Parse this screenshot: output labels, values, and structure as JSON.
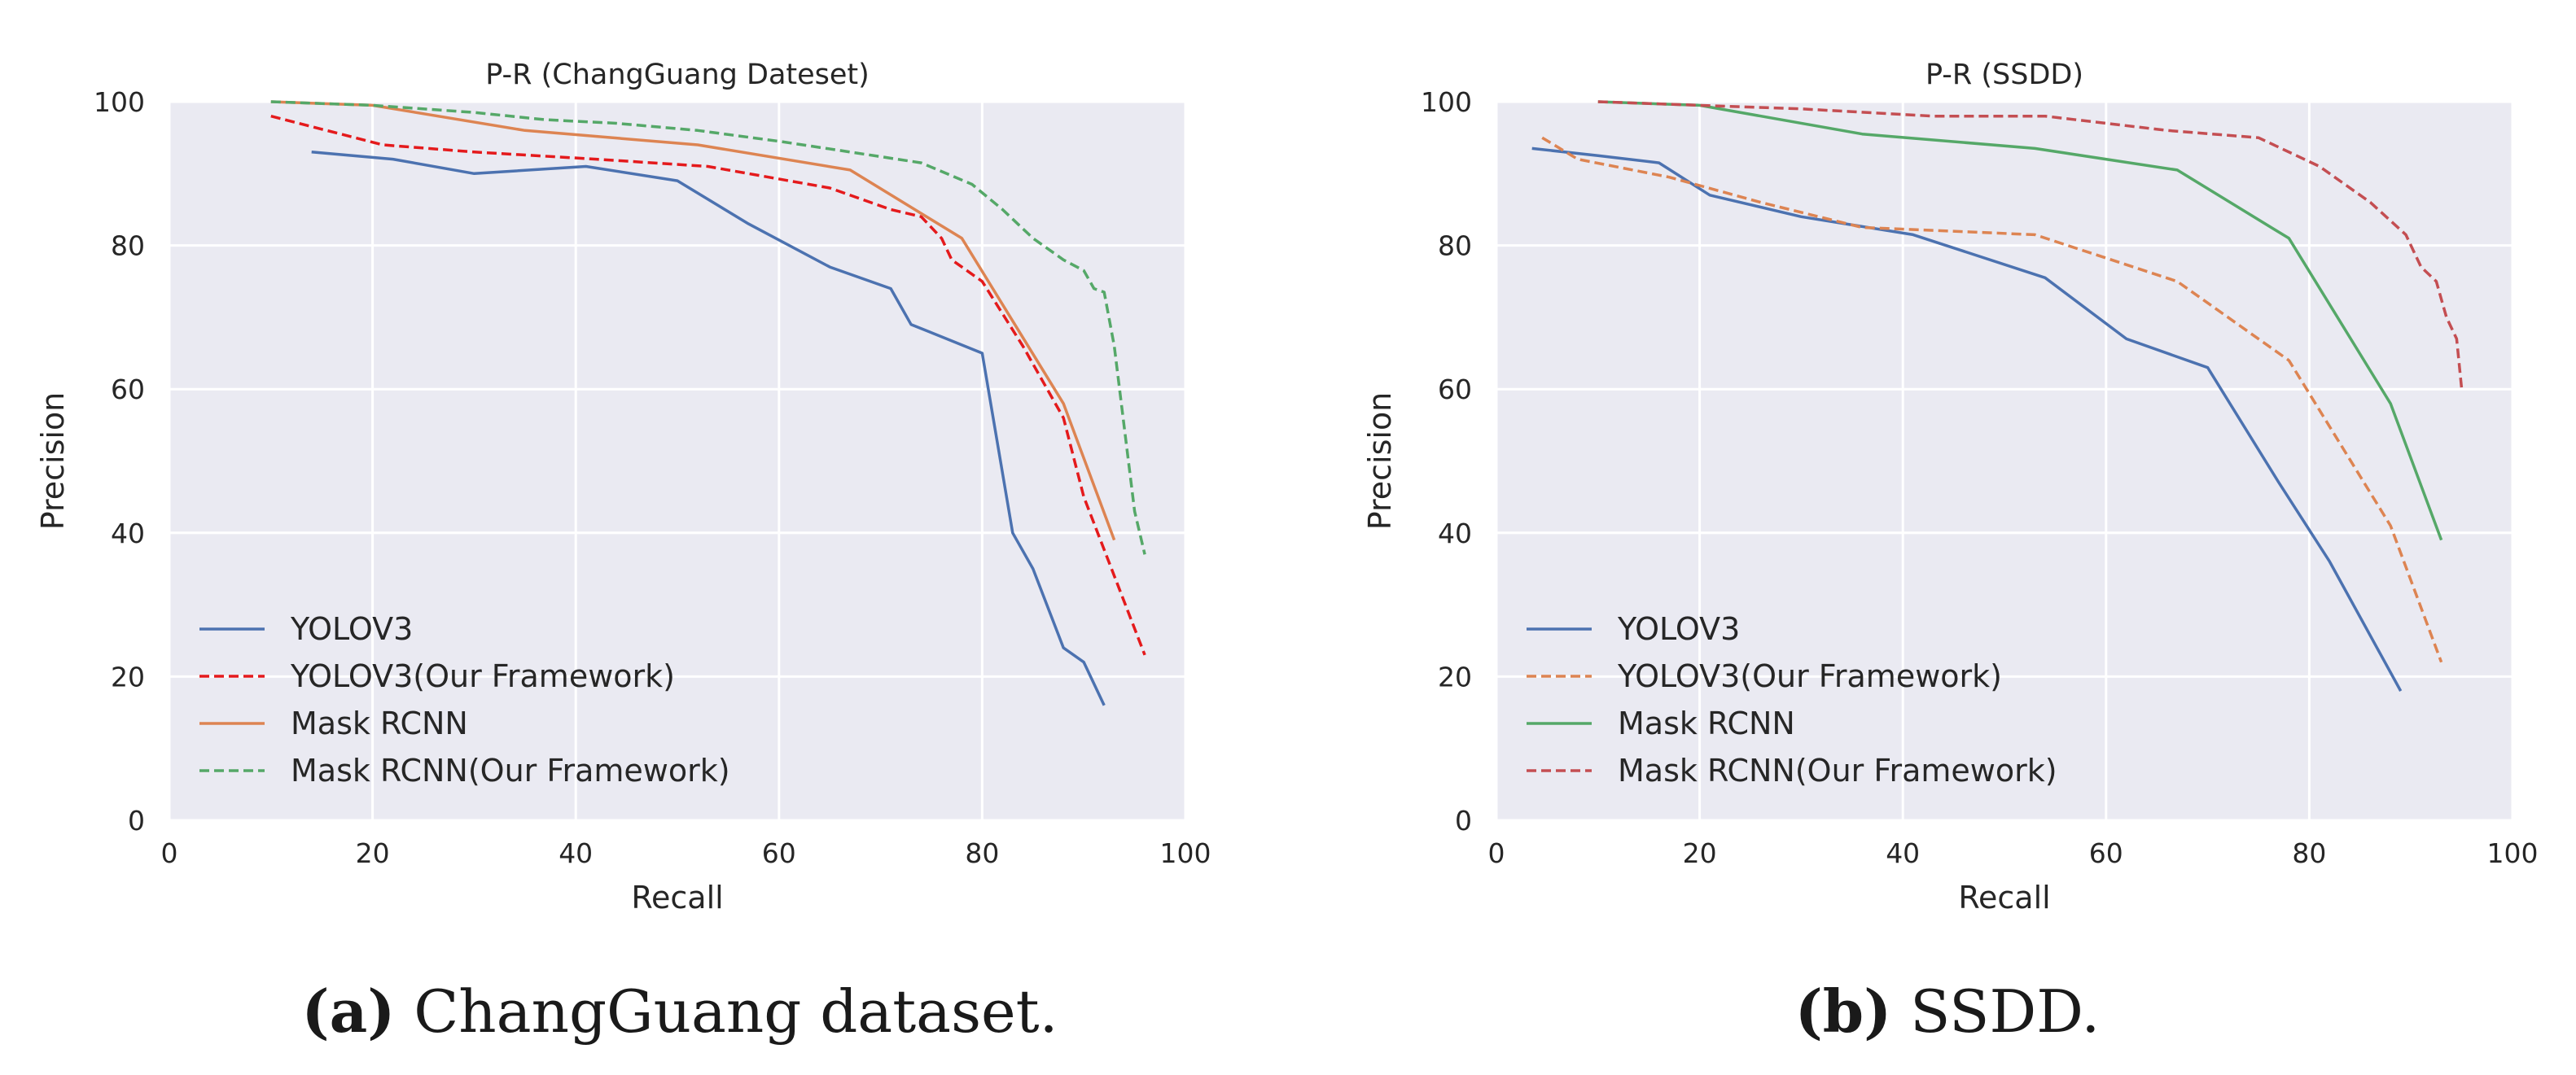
{
  "chart_data": [
    {
      "type": "line",
      "title": "P-R (ChangGuang Dateset)",
      "xlabel": "Recall",
      "ylabel": "Precision",
      "xlim": [
        0,
        100
      ],
      "ylim": [
        0,
        100
      ],
      "xticks": [
        0,
        20,
        40,
        60,
        80,
        100
      ],
      "yticks": [
        0,
        20,
        40,
        60,
        80,
        100
      ],
      "grid": true,
      "legend_position": "lower-left",
      "series": [
        {
          "name": "YOLOV3",
          "color": "#4c72b0",
          "dashed": false,
          "x": [
            14,
            22,
            30,
            41,
            50,
            57,
            65,
            71,
            73,
            80,
            83,
            85,
            88,
            90,
            92
          ],
          "y": [
            93,
            92,
            90,
            91,
            89,
            83,
            77,
            74,
            69,
            65,
            40,
            35,
            24,
            22,
            16
          ]
        },
        {
          "name": "YOLOV3(Our Framework)",
          "color": "#e41a1c",
          "dashed": true,
          "x": [
            10,
            21,
            30,
            42,
            53,
            65,
            71,
            74,
            76,
            77,
            80,
            84,
            88,
            90,
            96
          ],
          "y": [
            98,
            94,
            93,
            92,
            91,
            88,
            85,
            84,
            81,
            78,
            75,
            66,
            56,
            45,
            23
          ]
        },
        {
          "name": "Mask RCNN",
          "color": "#dd8452",
          "dashed": false,
          "x": [
            10,
            20,
            35,
            52,
            67,
            78,
            88,
            93
          ],
          "y": [
            100,
            99.5,
            96,
            94,
            90.5,
            81,
            58,
            39
          ]
        },
        {
          "name": "Mask RCNN(Our Framework)",
          "color": "#55a868",
          "dashed": true,
          "x": [
            10,
            20,
            30,
            37,
            44,
            52,
            60,
            67,
            74,
            79,
            82,
            85,
            88,
            90,
            91,
            92,
            93,
            95,
            96
          ],
          "y": [
            100,
            99.5,
            98.5,
            97.5,
            97,
            96,
            94.5,
            93,
            91.5,
            88.5,
            85,
            81,
            78,
            76.5,
            74,
            73.5,
            66,
            43,
            37
          ]
        }
      ]
    },
    {
      "type": "line",
      "title": "P-R (SSDD)",
      "xlabel": "Recall",
      "ylabel": "Precision",
      "xlim": [
        0,
        100
      ],
      "ylim": [
        0,
        100
      ],
      "xticks": [
        0,
        20,
        40,
        60,
        80,
        100
      ],
      "yticks": [
        0,
        20,
        40,
        60,
        80,
        100
      ],
      "grid": true,
      "legend_position": "lower-left",
      "series": [
        {
          "name": "YOLOV3",
          "color": "#4c72b0",
          "dashed": false,
          "x": [
            3.5,
            10,
            16,
            21,
            30,
            41,
            54,
            62,
            70,
            77,
            82,
            89
          ],
          "y": [
            93.5,
            92.5,
            91.5,
            87,
            84,
            81.5,
            75.5,
            67,
            63,
            47,
            36,
            18
          ]
        },
        {
          "name": "YOLOV3(Our Framework)",
          "color": "#dd8452",
          "dashed": true,
          "x": [
            4.5,
            8,
            17,
            26,
            36,
            53,
            67,
            78,
            88,
            93
          ],
          "y": [
            95,
            92,
            89.5,
            86,
            82.5,
            81.5,
            75,
            64,
            41,
            22
          ]
        },
        {
          "name": "Mask RCNN",
          "color": "#55a868",
          "dashed": false,
          "x": [
            10,
            20,
            36,
            53,
            67,
            78,
            88,
            93
          ],
          "y": [
            100,
            99.5,
            95.5,
            93.5,
            90.5,
            81,
            58,
            39
          ]
        },
        {
          "name": "Mask RCNN(Our Framework)",
          "color": "#c44e52",
          "dashed": true,
          "x": [
            10,
            20,
            30,
            43,
            54,
            66,
            75,
            81,
            86,
            89.5,
            91,
            92.5,
            93.5,
            94.5,
            95
          ],
          "y": [
            100,
            99.5,
            99,
            98,
            98,
            96,
            95,
            91,
            86,
            81.5,
            77,
            75,
            70,
            67,
            60
          ]
        }
      ]
    }
  ],
  "captions": [
    {
      "label": "(a)",
      "text": " ChangGuang dataset."
    },
    {
      "label": "(b)",
      "text": " SSDD."
    }
  ]
}
